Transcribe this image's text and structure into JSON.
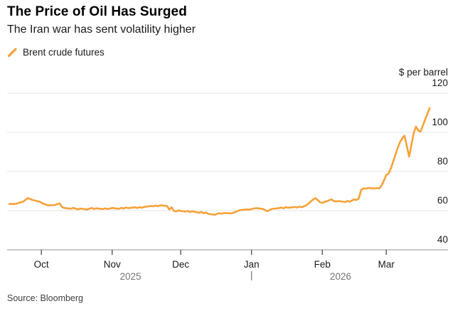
{
  "header": {
    "title": "The Price of Oil Has Surged",
    "subtitle": "The Iran war has sent volatility higher"
  },
  "legend": {
    "series_label": "Brent crude futures",
    "marker_color": "#F7A139"
  },
  "footer": {
    "source": "Source: Bloomberg"
  },
  "chart_data": {
    "type": "line",
    "title": "The Price of Oil Has Surged",
    "subtitle": "The Iran war has sent volatility higher",
    "series_name": "Brent crude futures",
    "unit_label": "$ per barrel",
    "ylim": [
      40,
      120
    ],
    "yticks": [
      40,
      60,
      80,
      100,
      120
    ],
    "grid": "horizontal-only",
    "legend_position": "top-left",
    "colors": {
      "line": "#F7A139",
      "grid": "#E4E4E4",
      "axis_line": "#C9C9C9",
      "tick_mark": "#4A4A4A",
      "axis_text": "#1A1A1A",
      "year_text": "#757575"
    },
    "x_axis": {
      "note": "day offsets; day 0 = 15 Sep 2025, series runs to ~19 Mar 2026",
      "domain_days": [
        1,
        194
      ],
      "month_ticks": [
        {
          "label": "Oct",
          "day": 16
        },
        {
          "label": "Nov",
          "day": 47
        },
        {
          "label": "Dec",
          "day": 77
        },
        {
          "label": "Jan",
          "day": 108
        },
        {
          "label": "Feb",
          "day": 139
        },
        {
          "label": "Mar",
          "day": 167
        }
      ],
      "year_labels": [
        {
          "label": "2025",
          "day": 55
        },
        {
          "label": "2026",
          "day": 147
        }
      ],
      "year_divider_day": 108
    },
    "points": [
      [
        2,
        63.4
      ],
      [
        3,
        63.5
      ],
      [
        4,
        63.4
      ],
      [
        5,
        63.6
      ],
      [
        8,
        64.6
      ],
      [
        9,
        65.4
      ],
      [
        10,
        66.4
      ],
      [
        11,
        66.0
      ],
      [
        12,
        65.5
      ],
      [
        15,
        64.7
      ],
      [
        16,
        64.1
      ],
      [
        17,
        63.5
      ],
      [
        18,
        63.1
      ],
      [
        19,
        62.7
      ],
      [
        22,
        62.9
      ],
      [
        23,
        63.4
      ],
      [
        24,
        63.7
      ],
      [
        25,
        61.9
      ],
      [
        26,
        61.4
      ],
      [
        29,
        61.0
      ],
      [
        30,
        61.5
      ],
      [
        31,
        61.0
      ],
      [
        32,
        60.7
      ],
      [
        33,
        61.1
      ],
      [
        36,
        60.6
      ],
      [
        37,
        61.0
      ],
      [
        38,
        61.4
      ],
      [
        39,
        60.9
      ],
      [
        40,
        61.2
      ],
      [
        43,
        60.8
      ],
      [
        44,
        61.2
      ],
      [
        45,
        60.8
      ],
      [
        46,
        61.1
      ],
      [
        47,
        61.4
      ],
      [
        50,
        60.9
      ],
      [
        51,
        61.5
      ],
      [
        52,
        61.1
      ],
      [
        53,
        61.6
      ],
      [
        54,
        61.3
      ],
      [
        57,
        61.7
      ],
      [
        58,
        61.4
      ],
      [
        59,
        61.8
      ],
      [
        60,
        61.5
      ],
      [
        61,
        61.9
      ],
      [
        64,
        62.4
      ],
      [
        65,
        62.2
      ],
      [
        66,
        62.6
      ],
      [
        67,
        62.3
      ],
      [
        68,
        62.7
      ],
      [
        71,
        62.4
      ],
      [
        72,
        60.6
      ],
      [
        73,
        61.7
      ],
      [
        74,
        59.9
      ],
      [
        75,
        59.6
      ],
      [
        76,
        60.1
      ],
      [
        79,
        59.5
      ],
      [
        80,
        59.9
      ],
      [
        81,
        59.3
      ],
      [
        82,
        59.7
      ],
      [
        85,
        58.9
      ],
      [
        86,
        59.4
      ],
      [
        87,
        58.7
      ],
      [
        88,
        59.1
      ],
      [
        89,
        58.4
      ],
      [
        92,
        57.9
      ],
      [
        93,
        58.4
      ],
      [
        94,
        58.7
      ],
      [
        95,
        58.5
      ],
      [
        96,
        58.8
      ],
      [
        99,
        58.6
      ],
      [
        100,
        58.9
      ],
      [
        101,
        59.4
      ],
      [
        102,
        59.9
      ],
      [
        103,
        60.3
      ],
      [
        106,
        60.6
      ],
      [
        107,
        60.5
      ],
      [
        108,
        60.8
      ],
      [
        109,
        61.1
      ],
      [
        110,
        61.3
      ],
      [
        113,
        60.9
      ],
      [
        114,
        60.2
      ],
      [
        115,
        59.7
      ],
      [
        116,
        60.4
      ],
      [
        117,
        60.9
      ],
      [
        120,
        61.3
      ],
      [
        121,
        61.6
      ],
      [
        122,
        61.2
      ],
      [
        123,
        61.8
      ],
      [
        124,
        61.5
      ],
      [
        127,
        61.9
      ],
      [
        128,
        61.6
      ],
      [
        129,
        62.1
      ],
      [
        130,
        61.8
      ],
      [
        131,
        62.2
      ],
      [
        132,
        62.8
      ],
      [
        133,
        63.6
      ],
      [
        134,
        64.8
      ],
      [
        135,
        65.7
      ],
      [
        136,
        66.4
      ],
      [
        137,
        65.4
      ],
      [
        138,
        64.3
      ],
      [
        139,
        64.0
      ],
      [
        142,
        65.3
      ],
      [
        143,
        65.8
      ],
      [
        144,
        64.9
      ],
      [
        145,
        64.7
      ],
      [
        146,
        64.9
      ],
      [
        149,
        64.4
      ],
      [
        150,
        65.0
      ],
      [
        151,
        64.6
      ],
      [
        152,
        65.2
      ],
      [
        153,
        65.8
      ],
      [
        154,
        65.4
      ],
      [
        155,
        66.3
      ],
      [
        156,
        70.6
      ],
      [
        157,
        71.4
      ],
      [
        158,
        71.2
      ],
      [
        159,
        71.6
      ],
      [
        162,
        71.3
      ],
      [
        163,
        71.5
      ],
      [
        164,
        71.4
      ],
      [
        165,
        73.0
      ],
      [
        166,
        75.5
      ],
      [
        167,
        78.2
      ],
      [
        168,
        79.0
      ],
      [
        169,
        81.5
      ],
      [
        170,
        85.0
      ],
      [
        171,
        88.5
      ],
      [
        172,
        92.0
      ],
      [
        173,
        95.0
      ],
      [
        174,
        97.0
      ],
      [
        175,
        98.3
      ],
      [
        176,
        93.0
      ],
      [
        177,
        87.6
      ],
      [
        178,
        93.5
      ],
      [
        179,
        99.5
      ],
      [
        180,
        103.0
      ],
      [
        181,
        101.0
      ],
      [
        182,
        100.4
      ],
      [
        183,
        103.5
      ],
      [
        184,
        106.5
      ],
      [
        185,
        109.5
      ],
      [
        186,
        112.4
      ]
    ]
  }
}
